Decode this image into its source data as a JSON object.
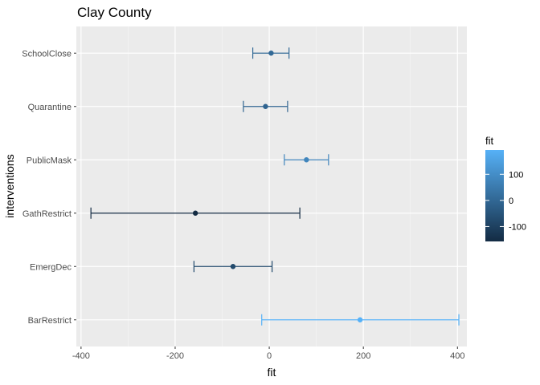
{
  "chart_data": {
    "type": "errorbar",
    "title": "Clay County",
    "xlabel": "fit",
    "ylabel": "interventions",
    "xlim": [
      -410,
      420
    ],
    "xticks": [
      -400,
      -200,
      0,
      200,
      400
    ],
    "grid": true,
    "categories": [
      "SchoolClose",
      "Quarantine",
      "PublicMask",
      "GathRestrict",
      "EmergDec",
      "BarRestrict"
    ],
    "points": [
      {
        "label": "SchoolClose",
        "fit": 4,
        "lower": -35,
        "upper": 42
      },
      {
        "label": "Quarantine",
        "fit": -8,
        "lower": -55,
        "upper": 39
      },
      {
        "label": "PublicMask",
        "fit": 79,
        "lower": 32,
        "upper": 126
      },
      {
        "label": "GathRestrict",
        "fit": -157,
        "lower": -379,
        "upper": 65
      },
      {
        "label": "EmergDec",
        "fit": -77,
        "lower": -160,
        "upper": 6
      },
      {
        "label": "BarRestrict",
        "fit": 193,
        "lower": -16,
        "upper": 403
      }
    ],
    "legend": {
      "title": "fit",
      "position": "right",
      "ticks": [
        100,
        0,
        -100
      ],
      "range": [
        -157,
        193
      ],
      "low_color": "#132B43",
      "high_color": "#56B1F7"
    }
  }
}
